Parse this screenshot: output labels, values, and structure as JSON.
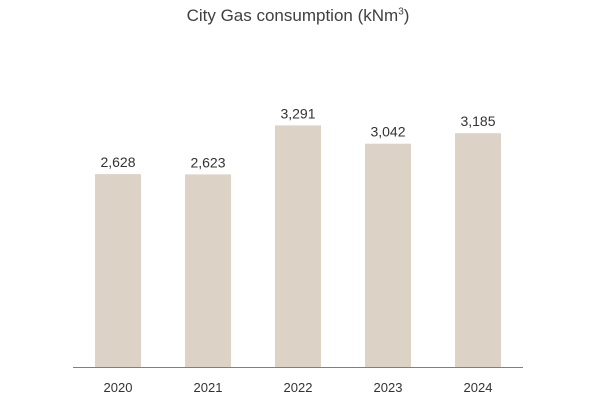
{
  "chart_data": {
    "type": "bar",
    "title": "City Gas consumption (kNm",
    "title_superscript": "3",
    "title_suffix": ")",
    "categories": [
      "2020",
      "2021",
      "2022",
      "2023",
      "2024"
    ],
    "values": [
      2628,
      2623,
      3291,
      3042,
      3185
    ],
    "data_labels": [
      "2,628",
      "2,623",
      "3,291",
      "3,042",
      "3,185"
    ],
    "xlabel": "",
    "ylabel": "",
    "ylim": [
      0,
      4400
    ],
    "grid": false,
    "legend": "none",
    "bar_color": "#dcd3c6",
    "axis_color": "#7f7f7f"
  }
}
